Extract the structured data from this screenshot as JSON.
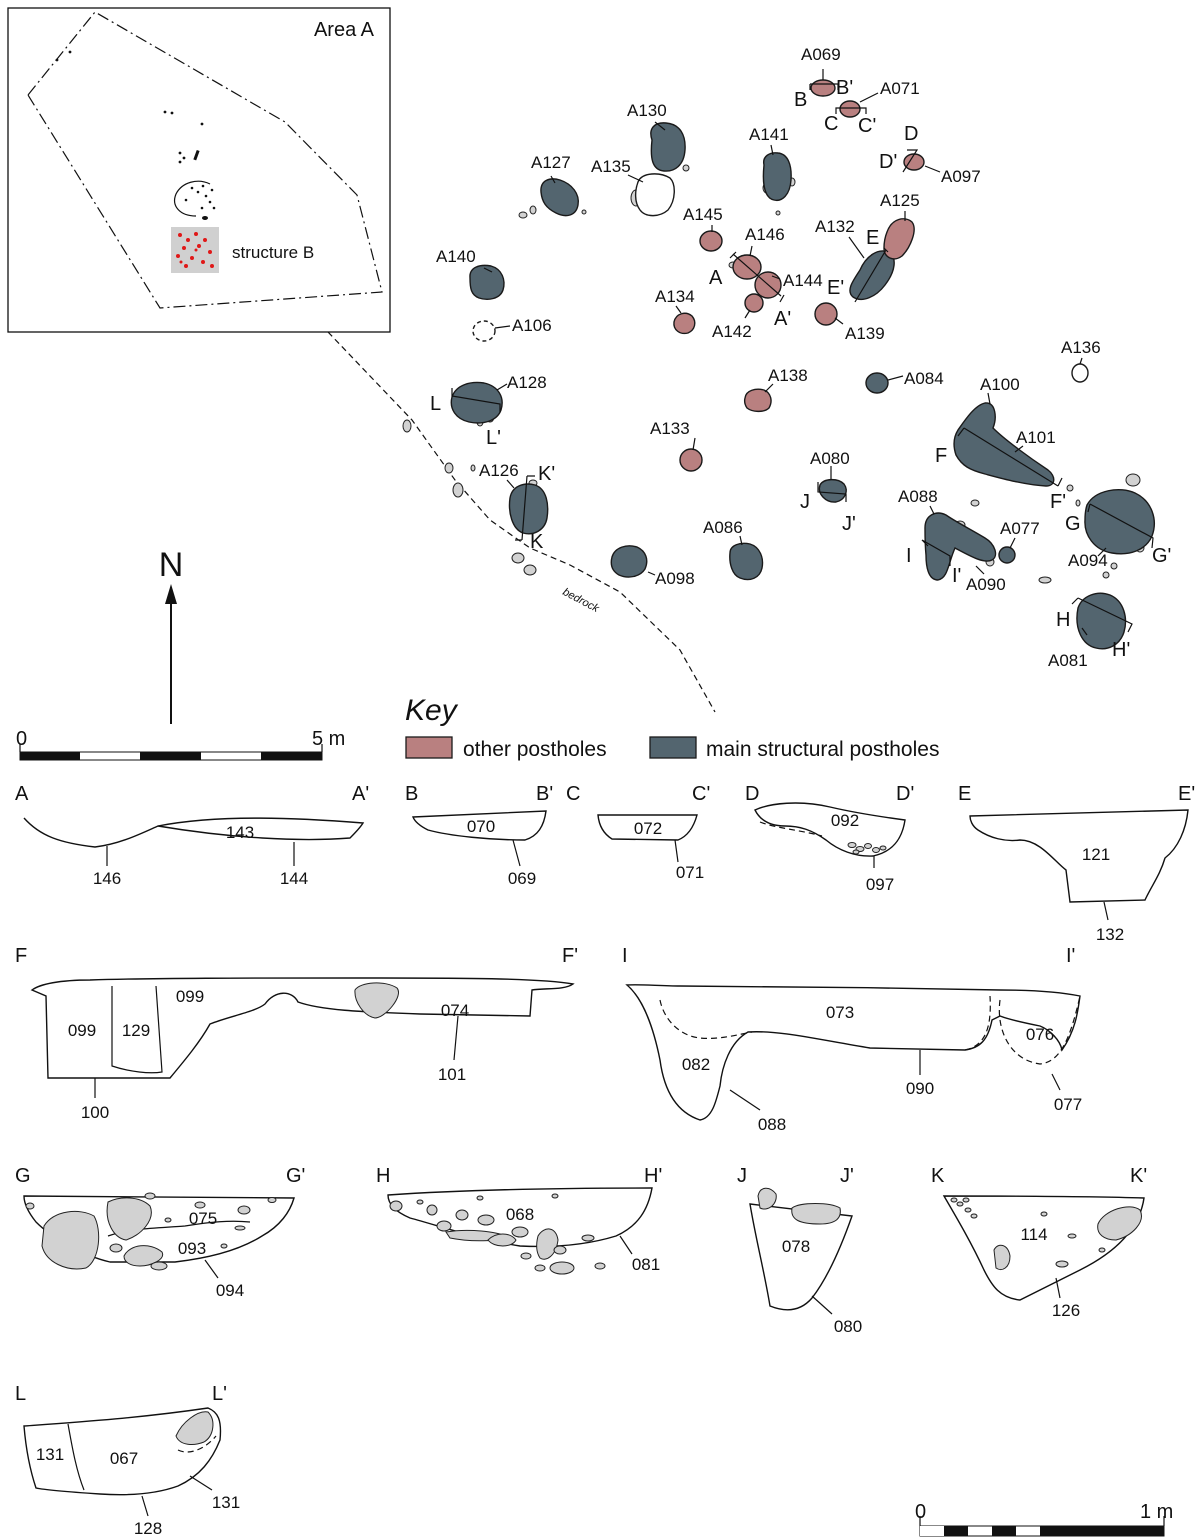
{
  "inset": {
    "area_label": "Area A",
    "structure_label": "structure B",
    "colors": {
      "structure_fill": "#d0d0d0",
      "structure_dots": "#e01818"
    }
  },
  "plan": {
    "north_label": "N",
    "bedrock_label": "bedrock",
    "scale": {
      "start": "0",
      "end": "5 m"
    },
    "features": {
      "a069": "A069",
      "a071": "A071",
      "a097": "A097",
      "a125": "A125",
      "a130": "A130",
      "a141": "A141",
      "a127": "A127",
      "a135": "A135",
      "a145": "A145",
      "a146": "A146",
      "a132": "A132",
      "a144": "A144",
      "a140": "A140",
      "a134": "A134",
      "a142": "A142",
      "a139": "A139",
      "a106": "A106",
      "a136": "A136",
      "a084": "A084",
      "a128": "A128",
      "a138": "A138",
      "a100": "A100",
      "a101": "A101",
      "a133": "A133",
      "a080": "A080",
      "a126": "A126",
      "a088": "A088",
      "a077": "A077",
      "a094": "A094",
      "a086": "A086",
      "a098": "A098",
      "a090": "A090",
      "a081": "A081"
    },
    "section_markers": {
      "a": "A",
      "a_p": "A'",
      "b": "B",
      "b_p": "B'",
      "c": "C",
      "c_p": "C'",
      "d": "D",
      "d_p": "D'",
      "e": "E",
      "e_p": "E'",
      "f": "F",
      "f_p": "F'",
      "g": "G",
      "g_p": "G'",
      "h": "H",
      "h_p": "H'",
      "i": "I",
      "i_p": "I'",
      "j": "J",
      "j_p": "J'",
      "k": "K",
      "k_p": "K'",
      "l": "L",
      "l_p": "L'"
    }
  },
  "key": {
    "title": "Key",
    "items": [
      {
        "label": "other postholes",
        "color": "#b98080"
      },
      {
        "label": "main structural postholes",
        "color": "#53656f"
      }
    ]
  },
  "sections": {
    "a": {
      "start": "A",
      "end": "A'",
      "fill": "143",
      "cut1": "146",
      "cut2": "144"
    },
    "b": {
      "start": "B",
      "end": "B'",
      "fill": "070",
      "cut": "069"
    },
    "c": {
      "start": "C",
      "end": "C'",
      "fill": "072",
      "cut": "071"
    },
    "d": {
      "start": "D",
      "end": "D'",
      "fill": "092",
      "cut": "097"
    },
    "e": {
      "start": "E",
      "end": "E'",
      "fill": "121",
      "cut": "132"
    },
    "f": {
      "start": "F",
      "end": "F'",
      "fill1": "099",
      "fill2": "129",
      "fill3": "099",
      "fill4": "074",
      "cut1": "100",
      "cut2": "101"
    },
    "i": {
      "start": "I",
      "end": "I'",
      "fill1": "073",
      "fill2": "082",
      "fill3": "076",
      "cut1": "088",
      "cut2": "090",
      "cut3": "077"
    },
    "g": {
      "start": "G",
      "end": "G'",
      "fill1": "075",
      "fill2": "093",
      "cut": "094"
    },
    "h": {
      "start": "H",
      "end": "H'",
      "fill": "068",
      "cut": "081"
    },
    "j": {
      "start": "J",
      "end": "J'",
      "fill": "078",
      "cut": "080"
    },
    "k": {
      "start": "K",
      "end": "K'",
      "fill": "114",
      "cut": "126"
    },
    "l": {
      "start": "L",
      "end": "L'",
      "fill1": "131",
      "fill2": "067",
      "fill3": "131",
      "cut": "128"
    }
  },
  "section_scale": {
    "start": "0",
    "end": "1 m"
  }
}
